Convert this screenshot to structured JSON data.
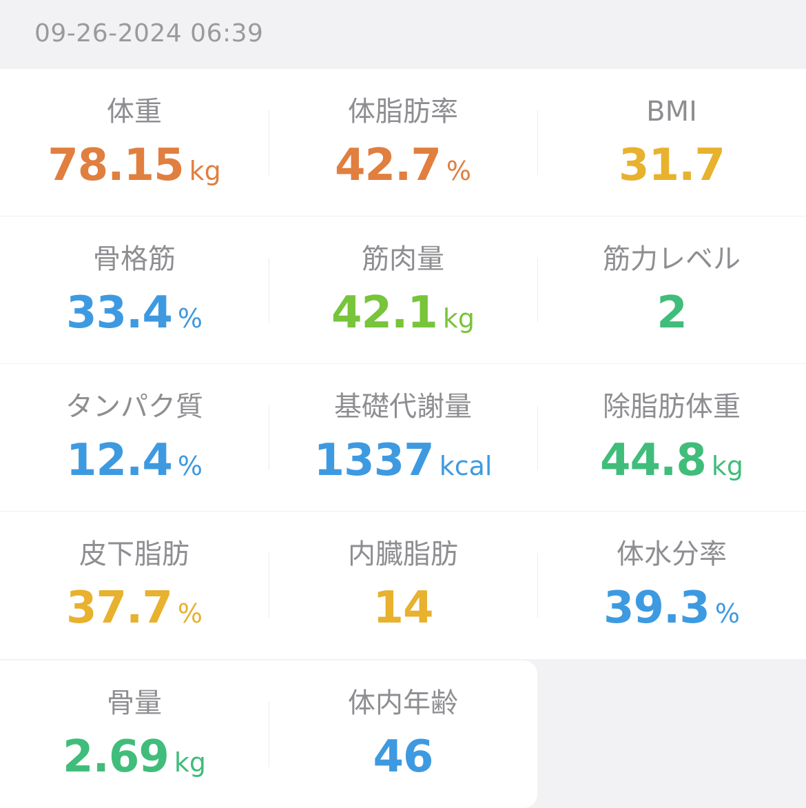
{
  "header": {
    "timestamp": "09-26-2024 06:39"
  },
  "metrics": [
    [
      {
        "label": "体重",
        "value": "78.15",
        "unit": "kg",
        "color": "#e07f3f"
      },
      {
        "label": "体脂肪率",
        "value": "42.7",
        "unit": "%",
        "color": "#e07f3f"
      },
      {
        "label": "BMI",
        "value": "31.7",
        "unit": "",
        "color": "#e8b12e"
      }
    ],
    [
      {
        "label": "骨格筋",
        "value": "33.4",
        "unit": "%",
        "color": "#3e9ae0"
      },
      {
        "label": "筋肉量",
        "value": "42.1",
        "unit": "kg",
        "color": "#78c43a"
      },
      {
        "label": "筋力レベル",
        "value": "2",
        "unit": "",
        "color": "#40bd7a"
      }
    ],
    [
      {
        "label": "タンパク質",
        "value": "12.4",
        "unit": "%",
        "color": "#3e9ae0"
      },
      {
        "label": "基礎代謝量",
        "value": "1337",
        "unit": "kcal",
        "color": "#3e9ae0"
      },
      {
        "label": "除脂肪体重",
        "value": "44.8",
        "unit": "kg",
        "color": "#40bd7a"
      }
    ],
    [
      {
        "label": "皮下脂肪",
        "value": "37.7",
        "unit": "%",
        "color": "#e8b12e"
      },
      {
        "label": "内臓脂肪",
        "value": "14",
        "unit": "",
        "color": "#e8b12e"
      },
      {
        "label": "体水分率",
        "value": "39.3",
        "unit": "%",
        "color": "#3e9ae0"
      }
    ],
    [
      {
        "label": "骨量",
        "value": "2.69",
        "unit": "kg",
        "color": "#40bd7a"
      },
      {
        "label": "体内年齢",
        "value": "46",
        "unit": "",
        "color": "#3e9ae0"
      }
    ]
  ]
}
